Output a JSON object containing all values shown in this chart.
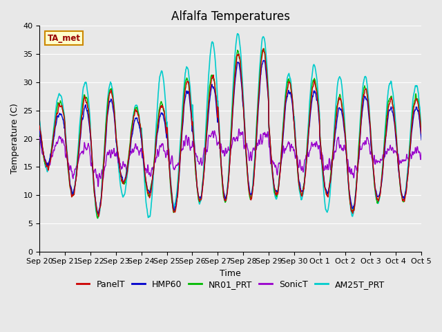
{
  "title": "Alfalfa Temperatures",
  "xlabel": "Time",
  "ylabel": "Temperature (C)",
  "annotation": "TA_met",
  "ylim": [
    0,
    40
  ],
  "yticks": [
    0,
    5,
    10,
    15,
    20,
    25,
    30,
    35,
    40
  ],
  "date_labels": [
    "Sep 20",
    "Sep 21",
    "Sep 22",
    "Sep 23",
    "Sep 24",
    "Sep 25",
    "Sep 26",
    "Sep 27",
    "Sep 28",
    "Sep 29",
    "Sep 30",
    "Oct 1",
    "Oct 2",
    "Oct 3",
    "Oct 4",
    "Oct 5"
  ],
  "series": {
    "PanelT": {
      "color": "#cc0000",
      "lw": 1.0
    },
    "HMP60": {
      "color": "#0000cc",
      "lw": 1.0
    },
    "NR01_PRT": {
      "color": "#00bb00",
      "lw": 1.0
    },
    "SonicT": {
      "color": "#9900cc",
      "lw": 1.0
    },
    "AM25T_PRT": {
      "color": "#00cccc",
      "lw": 1.2
    }
  },
  "background_color": "#e8e8e8",
  "grid_color": "#ffffff",
  "title_fontsize": 12,
  "label_fontsize": 9,
  "tick_fontsize": 8,
  "n_days": 15,
  "pts_per_day": 96,
  "peak_temps": [
    26,
    27,
    28.5,
    25,
    26,
    30,
    31,
    35,
    35.5,
    30,
    30,
    27,
    29,
    27,
    27
  ],
  "valley_temps": [
    15,
    10,
    6.5,
    12,
    10,
    7,
    9,
    9,
    9.5,
    10,
    10,
    10,
    7,
    9,
    9
  ],
  "sonic_peaks": [
    20,
    19,
    18,
    18.5,
    19,
    20,
    21,
    21,
    21,
    19,
    19,
    19,
    20,
    18,
    18
  ],
  "sonic_valleys": [
    15.5,
    14,
    13,
    15,
    14,
    15,
    16,
    17,
    17,
    15,
    15,
    15,
    14,
    16,
    16
  ],
  "am25_peaks": [
    28,
    30,
    30,
    26,
    32,
    32.5,
    37,
    38.5,
    38,
    31.5,
    33,
    31,
    31,
    30,
    29.5
  ],
  "am25_valleys": [
    14.5,
    10,
    6,
    10,
    6,
    8,
    8.5,
    9,
    10,
    9.5,
    9.5,
    7,
    6.5,
    8.5,
    9
  ]
}
